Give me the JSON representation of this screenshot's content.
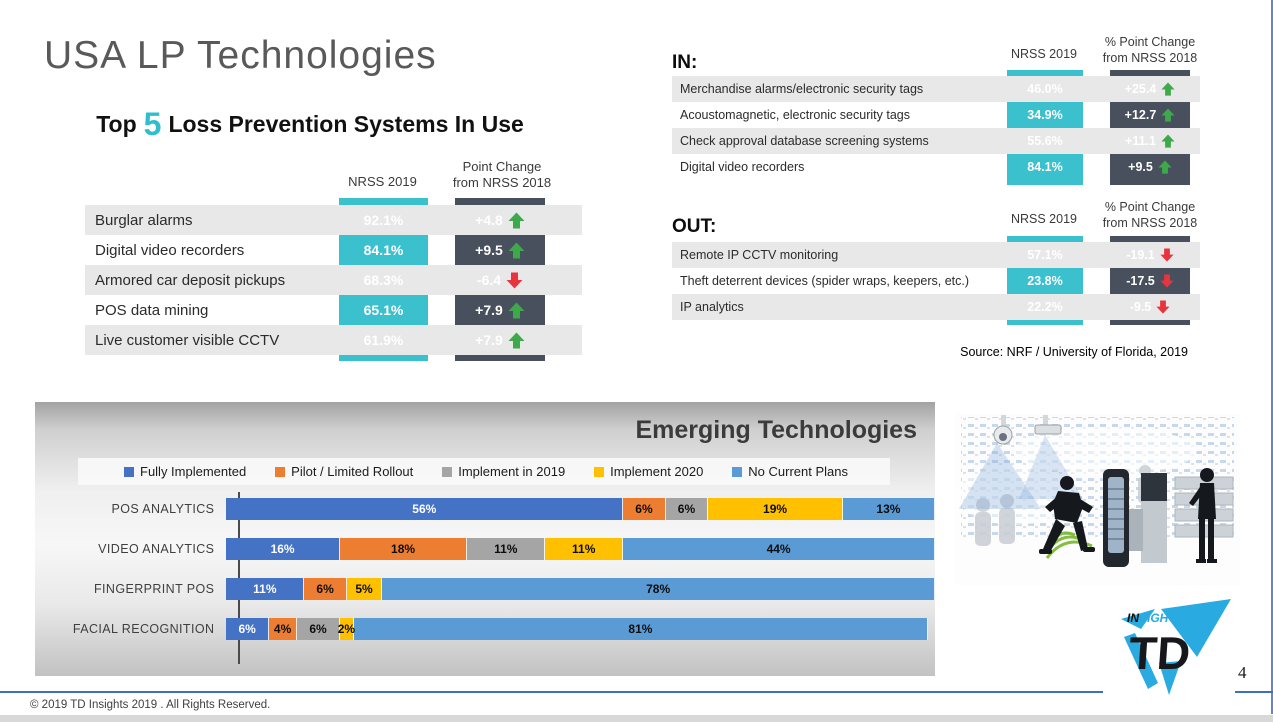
{
  "slide": {
    "title": "USA LP Technologies",
    "source_note": "Source: NRF / University of Florida, 2019",
    "footer_text": "© 2019 TD Insights 2019 . All Rights Reserved.",
    "page_number": "4"
  },
  "colors": {
    "teal": "#3BC0CE",
    "slate": "#47505C",
    "green_arrow": "#3EA94A",
    "red_arrow": "#E8343E",
    "footer_line_blue": "#3E6FB8",
    "title_gray": "#595959",
    "logo_blue": "#29ABE2"
  },
  "top5": {
    "heading_prefix": "Top",
    "heading_number": "5",
    "heading_suffix": "Loss Prevention Systems In Use",
    "col_value_header": "NRSS 2019",
    "col_change_header": "Point Change\nfrom NRSS 2018",
    "rows": [
      {
        "label": "Burglar alarms",
        "value": "92.1%",
        "change": "+4.8",
        "direction": "up"
      },
      {
        "label": "Digital video recorders",
        "value": "84.1%",
        "change": "+9.5",
        "direction": "up"
      },
      {
        "label": "Armored car deposit pickups",
        "value": "68.3%",
        "change": "-6.4",
        "direction": "down"
      },
      {
        "label": "POS data mining",
        "value": "65.1%",
        "change": "+7.9",
        "direction": "up"
      },
      {
        "label": "Live customer visible CCTV",
        "value": "61.9%",
        "change": "+7.9",
        "direction": "up"
      }
    ]
  },
  "in_table": {
    "label": "IN:",
    "col_value_header": "NRSS 2019",
    "col_change_header": "% Point Change\nfrom NRSS 2018",
    "rows": [
      {
        "label": "Merchandise alarms/electronic security tags",
        "value": "46.0%",
        "change": "+25.4",
        "direction": "up"
      },
      {
        "label": "Acoustomagnetic, electronic security tags",
        "value": "34.9%",
        "change": "+12.7",
        "direction": "up"
      },
      {
        "label": "Check approval database screening systems",
        "value": "55.6%",
        "change": "+11.1",
        "direction": "up"
      },
      {
        "label": "Digital video recorders",
        "value": "84.1%",
        "change": "+9.5",
        "direction": "up"
      }
    ]
  },
  "out_table": {
    "label": "OUT:",
    "col_value_header": "NRSS 2019",
    "col_change_header": "% Point Change\nfrom NRSS 2018",
    "rows": [
      {
        "label": "Remote IP CCTV monitoring",
        "value": "57.1%",
        "change": "-19.1",
        "direction": "down"
      },
      {
        "label": "Theft deterrent devices (spider wraps, keepers, etc.)",
        "value": "23.8%",
        "change": "-17.5",
        "direction": "down"
      },
      {
        "label": "IP analytics",
        "value": "22.2%",
        "change": "-9.5",
        "direction": "down"
      }
    ]
  },
  "chart_data": {
    "type": "bar",
    "stacked": true,
    "orientation": "horizontal",
    "title": "Emerging Technologies",
    "categories": [
      "POS ANALYTICS",
      "VIDEO ANALYTICS",
      "FINGERPRINT POS",
      "FACIAL RECOGNITION"
    ],
    "series": [
      {
        "name": "Fully Implemented",
        "color": "#4472C4",
        "values": [
          56,
          16,
          11,
          6
        ]
      },
      {
        "name": "Pilot / Limited Rollout",
        "color": "#ED7D31",
        "values": [
          6,
          18,
          6,
          4
        ]
      },
      {
        "name": "Implement in 2019",
        "color": "#A5A5A5",
        "values": [
          6,
          11,
          0,
          6
        ]
      },
      {
        "name": "Implement 2020",
        "color": "#FFC000",
        "values": [
          19,
          11,
          5,
          2
        ]
      },
      {
        "name": "No Current Plans",
        "color": "#5B9BD5",
        "values": [
          13,
          44,
          78,
          81
        ]
      }
    ],
    "value_suffix": "%",
    "xlim": [
      0,
      100
    ],
    "legend_position": "top",
    "grid": false
  },
  "logo": {
    "insights_prefix": "IN",
    "insights_suffix": "SIGHTS",
    "monogram": "TD"
  }
}
